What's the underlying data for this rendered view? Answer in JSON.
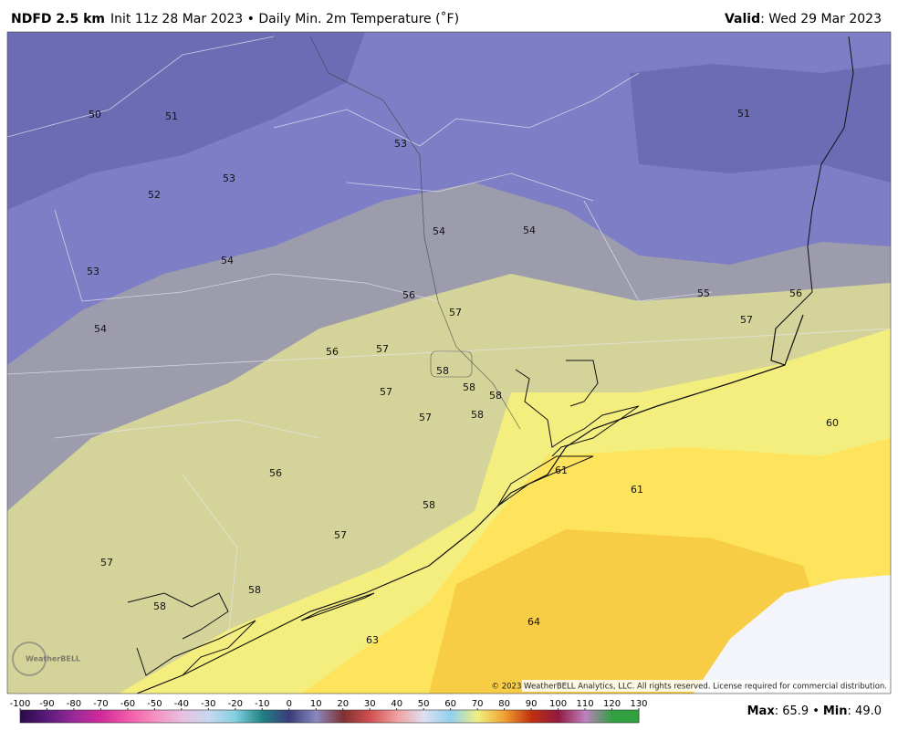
{
  "header": {
    "model": "NDFD 2.5 km",
    "description": "Init 11z 28 Mar 2023 • Daily Min. 2m Temperature (˚F)",
    "valid_label": "Valid",
    "valid_date": ": Wed 29 Mar 2023"
  },
  "map": {
    "labels": [
      "50",
      "51",
      "53",
      "53",
      "52",
      "54",
      "54",
      "54",
      "53",
      "56",
      "57",
      "55",
      "56",
      "57",
      "54",
      "56",
      "57",
      "58",
      "58",
      "58",
      "57",
      "57",
      "58",
      "60",
      "56",
      "61",
      "61",
      "58",
      "57",
      "57",
      "58",
      "58",
      "64",
      "63",
      "51"
    ],
    "logo": "WeatherBELL",
    "copyright": "© 2023 WeatherBELL Analytics, LLC. All rights reserved. License required for commercial distribution."
  },
  "colorbar": {
    "ticks": [
      -100,
      -90,
      -80,
      -70,
      -60,
      -50,
      -40,
      -30,
      -20,
      -10,
      0,
      10,
      20,
      30,
      40,
      50,
      60,
      70,
      80,
      90,
      100,
      110,
      120,
      130
    ]
  },
  "stats": {
    "max_label": "Max",
    "max_value": ": 65.9",
    "separator": "•",
    "min_label": "Min",
    "min_value": ": 49.0"
  }
}
